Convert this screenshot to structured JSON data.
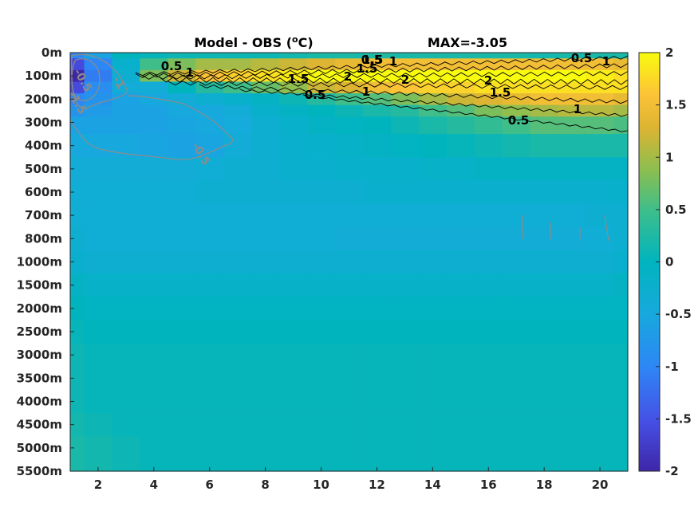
{
  "chart_data": {
    "type": "heatmap",
    "title": "Model - OBS (°C)",
    "title_parts": {
      "prefix": "Model - OBS (",
      "superscript": "o",
      "suffix": "C)"
    },
    "annotation": "MAX=-3.05",
    "xlabel": "",
    "ylabel": "",
    "x_ticks": [
      2,
      4,
      6,
      8,
      10,
      12,
      14,
      16,
      18,
      20
    ],
    "xlim": [
      1,
      21
    ],
    "y_tick_labels": [
      "0m",
      "100m",
      "200m",
      "300m",
      "400m",
      "500m",
      "600m",
      "700m",
      "800m",
      "1000m",
      "1500m",
      "2000m",
      "2500m",
      "3000m",
      "3500m",
      "4000m",
      "4500m",
      "5000m",
      "5500m"
    ],
    "colorbar": {
      "range": [
        -2,
        2
      ],
      "ticks": [
        2,
        1.5,
        1,
        0.5,
        0,
        -0.5,
        -1,
        -1.5,
        -2
      ],
      "tick_labels": [
        "2",
        "1.5",
        "1",
        "0.5",
        "0",
        "-0.5",
        "-1",
        "-1.5",
        "-2"
      ],
      "colormap": "parula"
    },
    "x": [
      1,
      2,
      3,
      4,
      5,
      6,
      7,
      8,
      9,
      10,
      11,
      12,
      13,
      14,
      15,
      16,
      17,
      18,
      19,
      20,
      21
    ],
    "depth_levels": [
      "0m",
      "50m",
      "100m",
      "150m",
      "200m",
      "250m",
      "300m",
      "400m",
      "500m",
      "600m",
      "700m",
      "800m",
      "1000m",
      "1500m",
      "2000m",
      "2500m",
      "3000m",
      "3500m",
      "4000m",
      "4500m",
      "5000m",
      "5500m"
    ],
    "values": [
      [
        -1.0,
        -0.6,
        0.0,
        0.05,
        0.1,
        0.1,
        0.1,
        0.1,
        0.15,
        0.2,
        0.2,
        0.25,
        0.2,
        0.2,
        0.2,
        0.2,
        0.2,
        0.15,
        0.2,
        0.2,
        0.2
      ],
      [
        -1.6,
        -1.0,
        -0.2,
        0.5,
        0.8,
        1.0,
        1.0,
        1.1,
        1.2,
        1.3,
        1.4,
        1.5,
        1.5,
        1.5,
        1.5,
        1.5,
        1.5,
        1.5,
        1.5,
        1.5,
        1.4
      ],
      [
        -2.0,
        -1.1,
        -0.3,
        0.8,
        1.2,
        1.6,
        1.7,
        1.8,
        1.9,
        2.0,
        2.05,
        2.1,
        2.1,
        2.1,
        2.1,
        2.0,
        2.0,
        2.0,
        2.0,
        1.9,
        1.8
      ],
      [
        -1.6,
        -0.9,
        -0.4,
        -0.4,
        0.0,
        0.3,
        0.5,
        0.7,
        0.9,
        1.2,
        1.3,
        1.5,
        1.6,
        1.7,
        1.7,
        1.8,
        1.8,
        1.8,
        1.8,
        1.8,
        1.8
      ],
      [
        -1.0,
        -0.8,
        -0.6,
        -0.5,
        -0.4,
        -0.3,
        -0.2,
        -0.1,
        0.1,
        0.3,
        0.5,
        0.6,
        0.8,
        1.0,
        1.2,
        1.3,
        1.4,
        1.5,
        1.5,
        1.5,
        1.4
      ],
      [
        -0.8,
        -0.7,
        -0.6,
        -0.6,
        -0.5,
        -0.5,
        -0.4,
        -0.2,
        -0.1,
        0.0,
        0.1,
        0.2,
        0.3,
        0.5,
        0.6,
        0.8,
        0.9,
        1.0,
        1.1,
        1.1,
        1.0
      ],
      [
        -0.6,
        -0.6,
        -0.6,
        -0.6,
        -0.55,
        -0.5,
        -0.45,
        -0.3,
        -0.2,
        -0.1,
        -0.05,
        0.0,
        0.1,
        0.2,
        0.3,
        0.4,
        0.5,
        0.6,
        0.6,
        0.6,
        0.55
      ],
      [
        -0.5,
        -0.5,
        -0.5,
        -0.55,
        -0.6,
        -0.55,
        -0.4,
        -0.3,
        -0.25,
        -0.2,
        -0.15,
        -0.1,
        -0.05,
        0.0,
        0.05,
        0.1,
        0.15,
        0.2,
        0.2,
        0.2,
        0.2
      ],
      [
        -0.4,
        -0.4,
        -0.4,
        -0.4,
        -0.4,
        -0.35,
        -0.3,
        -0.3,
        -0.25,
        -0.25,
        -0.2,
        -0.2,
        -0.2,
        -0.15,
        -0.15,
        -0.1,
        -0.1,
        -0.1,
        -0.1,
        -0.1,
        -0.1
      ],
      [
        -0.35,
        -0.35,
        -0.35,
        -0.35,
        -0.35,
        -0.3,
        -0.3,
        -0.3,
        -0.3,
        -0.3,
        -0.3,
        -0.25,
        -0.25,
        -0.25,
        -0.25,
        -0.25,
        -0.25,
        -0.25,
        -0.25,
        -0.25,
        -0.2
      ],
      [
        -0.35,
        -0.35,
        -0.35,
        -0.35,
        -0.35,
        -0.35,
        -0.35,
        -0.35,
        -0.35,
        -0.35,
        -0.35,
        -0.35,
        -0.35,
        -0.35,
        -0.35,
        -0.35,
        -0.35,
        -0.35,
        -0.35,
        -0.3,
        -0.3
      ],
      [
        -0.3,
        -0.35,
        -0.35,
        -0.35,
        -0.35,
        -0.35,
        -0.35,
        -0.35,
        -0.35,
        -0.35,
        -0.4,
        -0.4,
        -0.4,
        -0.4,
        -0.4,
        -0.4,
        -0.4,
        -0.4,
        -0.4,
        -0.35,
        -0.3
      ],
      [
        -0.25,
        -0.3,
        -0.3,
        -0.3,
        -0.3,
        -0.3,
        -0.3,
        -0.3,
        -0.3,
        -0.3,
        -0.3,
        -0.3,
        -0.3,
        -0.3,
        -0.3,
        -0.3,
        -0.3,
        -0.3,
        -0.3,
        -0.3,
        -0.25
      ],
      [
        -0.1,
        -0.15,
        -0.15,
        -0.15,
        -0.15,
        -0.15,
        -0.15,
        -0.15,
        -0.15,
        -0.15,
        -0.15,
        -0.15,
        -0.15,
        -0.15,
        -0.15,
        -0.15,
        -0.15,
        -0.15,
        -0.15,
        -0.15,
        -0.1
      ],
      [
        0.0,
        -0.05,
        -0.05,
        -0.05,
        -0.05,
        -0.05,
        -0.05,
        -0.05,
        -0.05,
        -0.05,
        -0.05,
        -0.05,
        -0.05,
        -0.05,
        -0.05,
        -0.05,
        -0.05,
        -0.05,
        -0.05,
        -0.05,
        -0.05
      ],
      [
        0.05,
        0.0,
        0.0,
        0.0,
        0.0,
        0.0,
        0.0,
        0.0,
        0.0,
        0.0,
        0.0,
        0.0,
        0.0,
        0.0,
        0.0,
        0.0,
        0.0,
        0.0,
        0.0,
        0.0,
        0.0
      ],
      [
        0.1,
        0.05,
        0.05,
        0.05,
        0.05,
        0.05,
        0.05,
        0.05,
        0.05,
        0.05,
        0.05,
        0.05,
        0.05,
        0.05,
        0.05,
        0.05,
        0.05,
        0.05,
        0.05,
        0.05,
        0.05
      ],
      [
        0.1,
        0.05,
        0.05,
        0.05,
        0.05,
        0.05,
        0.05,
        0.05,
        0.05,
        0.05,
        0.05,
        0.05,
        0.05,
        0.05,
        0.05,
        0.05,
        0.05,
        0.05,
        0.05,
        0.05,
        0.05
      ],
      [
        0.1,
        0.05,
        0.05,
        0.05,
        0.05,
        0.05,
        0.05,
        0.05,
        0.05,
        0.05,
        0.05,
        0.05,
        0.05,
        0.05,
        0.05,
        0.05,
        0.05,
        0.05,
        0.05,
        0.05,
        0.05
      ],
      [
        0.15,
        0.1,
        0.05,
        0.05,
        0.05,
        0.05,
        0.05,
        0.05,
        0.05,
        0.05,
        0.05,
        0.05,
        0.05,
        0.05,
        0.05,
        0.05,
        0.05,
        0.05,
        0.05,
        0.05,
        0.05
      ],
      [
        0.2,
        0.15,
        0.1,
        0.05,
        0.05,
        0.05,
        0.05,
        0.05,
        0.05,
        0.05,
        0.05,
        0.05,
        0.05,
        0.05,
        0.05,
        0.05,
        0.05,
        0.05,
        0.05,
        0.05,
        0.05
      ],
      [
        0.2,
        0.15,
        0.1,
        0.05,
        0.05,
        0.05,
        0.05,
        0.05,
        0.05,
        0.05,
        0.05,
        0.05,
        0.05,
        0.05,
        0.05,
        0.05,
        0.05,
        0.05,
        0.05,
        0.05,
        0.05
      ]
    ],
    "contour_labels": [
      "0.5",
      "1",
      "1.5",
      "2",
      "1.5",
      "1",
      "0.5",
      "0.5",
      "1",
      "1.5",
      "2",
      "1",
      "0.5",
      "1",
      "2",
      "1.5",
      "0.5",
      "-0.5",
      "-1",
      "-1.5",
      "-0.5"
    ],
    "grid": false
  }
}
